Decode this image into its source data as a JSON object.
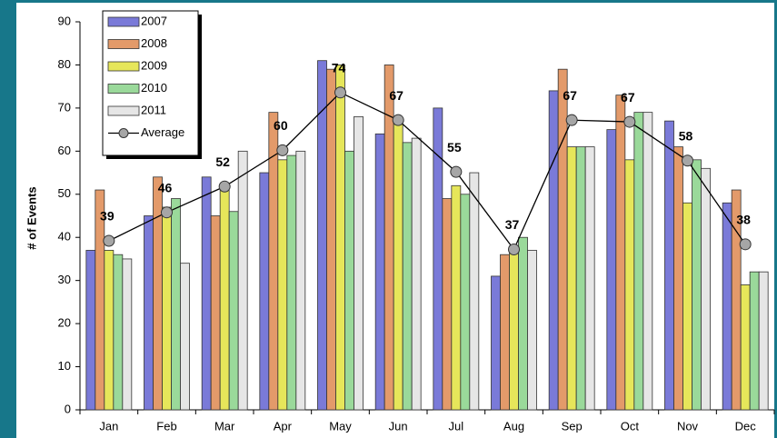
{
  "chart_data": {
    "type": "bar",
    "y_label": "# of Events",
    "categories": [
      "Jan",
      "Feb",
      "Mar",
      "Apr",
      "May",
      "Jun",
      "Jul",
      "Aug",
      "Sep",
      "Oct",
      "Nov",
      "Dec"
    ],
    "series": [
      {
        "name": "2007",
        "color": "#7a7ad8",
        "values": [
          37,
          45,
          54,
          55,
          81,
          64,
          70,
          31,
          74,
          65,
          67,
          48
        ]
      },
      {
        "name": "2008",
        "color": "#e39a6a",
        "values": [
          51,
          54,
          45,
          69,
          79,
          80,
          49,
          36,
          79,
          73,
          61,
          51
        ]
      },
      {
        "name": "2009",
        "color": "#e6e65a",
        "values": [
          37,
          47,
          51,
          58,
          80,
          67,
          52,
          38,
          61,
          58,
          48,
          29
        ]
      },
      {
        "name": "2010",
        "color": "#9ad99a",
        "values": [
          36,
          49,
          46,
          59,
          60,
          62,
          50,
          40,
          61,
          69,
          58,
          32
        ]
      },
      {
        "name": "2011",
        "color": "#e6e6e6",
        "values": [
          35,
          34,
          60,
          60,
          68,
          63,
          55,
          37,
          61,
          69,
          56,
          32
        ]
      },
      {
        "name": "Average",
        "type": "line",
        "color": "#a6a6a6",
        "values": [
          39.2,
          45.8,
          51.8,
          60.2,
          73.6,
          67.2,
          55.2,
          37.2,
          67.2,
          66.8,
          57.8,
          38.4
        ],
        "value_labels": [
          "39",
          "46",
          "52",
          "60",
          "74",
          "67",
          "55",
          "37",
          "67",
          "67",
          "58",
          "38"
        ]
      }
    ],
    "ylim": [
      0,
      90
    ],
    "yticks": [
      0,
      10,
      20,
      30,
      40,
      50,
      60,
      70,
      80,
      90
    ],
    "legend": "upper left"
  }
}
